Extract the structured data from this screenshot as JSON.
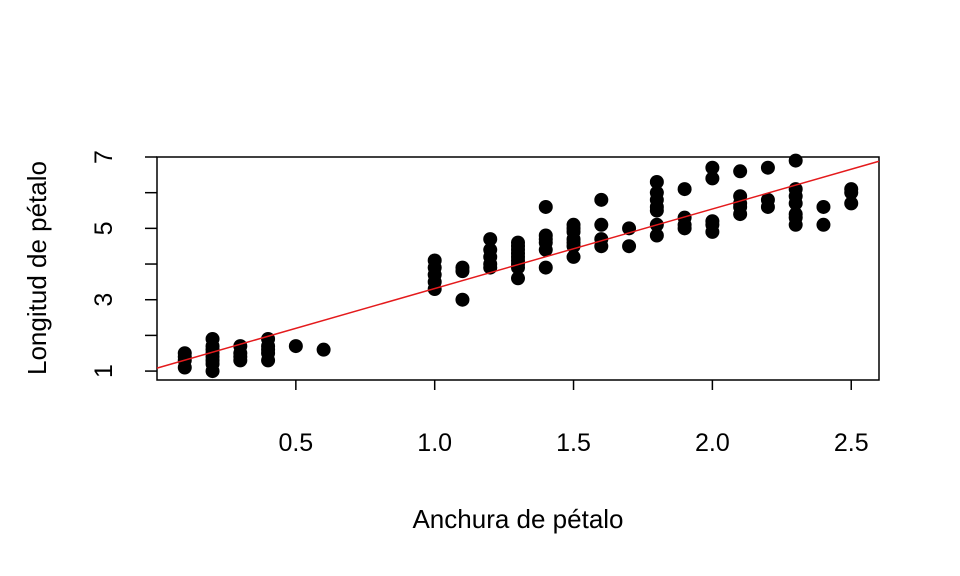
{
  "chart_data": {
    "type": "scatter",
    "title": "",
    "xlabel": "Anchura de pétalo",
    "ylabel": "Longitud de pétalo",
    "xlim": [
      0.0,
      2.6
    ],
    "ylim": [
      0.75,
      7.0
    ],
    "x_ticks": [
      {
        "value": 0.5,
        "label": "0.5"
      },
      {
        "value": 1.0,
        "label": "1.0"
      },
      {
        "value": 1.5,
        "label": "1.5"
      },
      {
        "value": 2.0,
        "label": "2.0"
      },
      {
        "value": 2.5,
        "label": "2.5"
      }
    ],
    "y_ticks": [
      {
        "value": 1,
        "label": "1"
      },
      {
        "value": 2,
        "label": ""
      },
      {
        "value": 3,
        "label": "3"
      },
      {
        "value": 4,
        "label": ""
      },
      {
        "value": 5,
        "label": "5"
      },
      {
        "value": 6,
        "label": ""
      },
      {
        "value": 7,
        "label": "7"
      }
    ],
    "grid": false,
    "point_color": "#000000",
    "points": [
      [
        0.1,
        1.1
      ],
      [
        0.1,
        1.4
      ],
      [
        0.1,
        1.5
      ],
      [
        0.1,
        1.3
      ],
      [
        0.2,
        1.0
      ],
      [
        0.2,
        1.2
      ],
      [
        0.2,
        1.4
      ],
      [
        0.2,
        1.5
      ],
      [
        0.2,
        1.6
      ],
      [
        0.2,
        1.7
      ],
      [
        0.2,
        1.9
      ],
      [
        0.2,
        1.3
      ],
      [
        0.3,
        1.3
      ],
      [
        0.3,
        1.4
      ],
      [
        0.3,
        1.5
      ],
      [
        0.3,
        1.7
      ],
      [
        0.4,
        1.3
      ],
      [
        0.4,
        1.5
      ],
      [
        0.4,
        1.6
      ],
      [
        0.4,
        1.7
      ],
      [
        0.4,
        1.9
      ],
      [
        0.5,
        1.7
      ],
      [
        0.6,
        1.6
      ],
      [
        1.0,
        3.3
      ],
      [
        1.0,
        3.5
      ],
      [
        1.0,
        3.7
      ],
      [
        1.0,
        3.9
      ],
      [
        1.0,
        4.1
      ],
      [
        1.1,
        3.0
      ],
      [
        1.1,
        3.8
      ],
      [
        1.1,
        3.9
      ],
      [
        1.2,
        3.9
      ],
      [
        1.2,
        4.0
      ],
      [
        1.2,
        4.2
      ],
      [
        1.2,
        4.4
      ],
      [
        1.2,
        4.7
      ],
      [
        1.3,
        3.6
      ],
      [
        1.3,
        3.9
      ],
      [
        1.3,
        4.0
      ],
      [
        1.3,
        4.1
      ],
      [
        1.3,
        4.2
      ],
      [
        1.3,
        4.3
      ],
      [
        1.3,
        4.4
      ],
      [
        1.3,
        4.5
      ],
      [
        1.3,
        4.6
      ],
      [
        1.4,
        3.9
      ],
      [
        1.4,
        4.4
      ],
      [
        1.4,
        4.6
      ],
      [
        1.4,
        4.7
      ],
      [
        1.4,
        4.8
      ],
      [
        1.4,
        5.6
      ],
      [
        1.5,
        4.2
      ],
      [
        1.5,
        4.5
      ],
      [
        1.5,
        4.6
      ],
      [
        1.5,
        4.7
      ],
      [
        1.5,
        4.9
      ],
      [
        1.5,
        5.0
      ],
      [
        1.5,
        5.1
      ],
      [
        1.6,
        4.5
      ],
      [
        1.6,
        4.7
      ],
      [
        1.6,
        5.1
      ],
      [
        1.6,
        5.8
      ],
      [
        1.7,
        4.5
      ],
      [
        1.7,
        5.0
      ],
      [
        1.8,
        4.8
      ],
      [
        1.8,
        5.1
      ],
      [
        1.8,
        5.5
      ],
      [
        1.8,
        5.6
      ],
      [
        1.8,
        5.8
      ],
      [
        1.8,
        6.0
      ],
      [
        1.8,
        6.3
      ],
      [
        1.9,
        5.0
      ],
      [
        1.9,
        5.1
      ],
      [
        1.9,
        5.3
      ],
      [
        1.9,
        6.1
      ],
      [
        2.0,
        4.9
      ],
      [
        2.0,
        5.1
      ],
      [
        2.0,
        5.2
      ],
      [
        2.0,
        6.4
      ],
      [
        2.0,
        6.7
      ],
      [
        2.1,
        5.4
      ],
      [
        2.1,
        5.6
      ],
      [
        2.1,
        5.7
      ],
      [
        2.1,
        5.9
      ],
      [
        2.1,
        6.6
      ],
      [
        2.2,
        5.6
      ],
      [
        2.2,
        5.8
      ],
      [
        2.2,
        6.7
      ],
      [
        2.3,
        5.1
      ],
      [
        2.3,
        5.3
      ],
      [
        2.3,
        5.4
      ],
      [
        2.3,
        5.7
      ],
      [
        2.3,
        5.9
      ],
      [
        2.3,
        6.1
      ],
      [
        2.3,
        6.9
      ],
      [
        2.4,
        5.1
      ],
      [
        2.4,
        5.6
      ],
      [
        2.5,
        5.7
      ],
      [
        2.5,
        6.0
      ],
      [
        2.5,
        6.1
      ]
    ],
    "regression_line": {
      "intercept": 1.0836,
      "slope": 2.2299,
      "color": "#e41a1c"
    }
  }
}
